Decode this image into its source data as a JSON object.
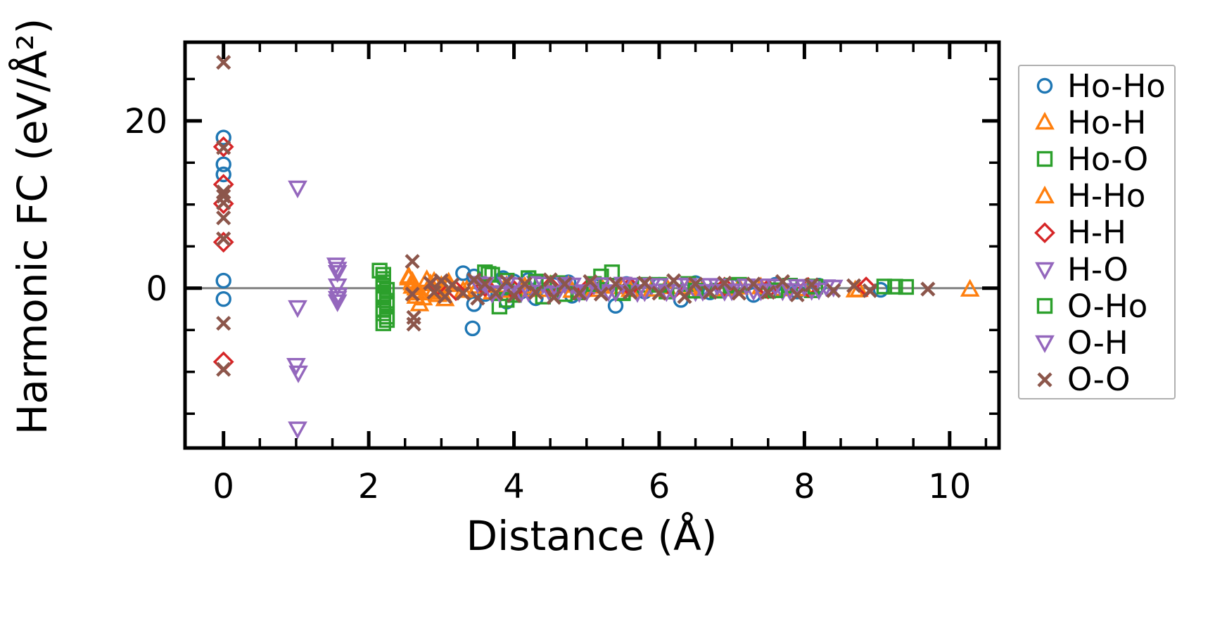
{
  "figure": {
    "background": "#ffffff",
    "axis_color": "#000000"
  },
  "chart_data": {
    "type": "scatter",
    "title": "",
    "xlabel": "Distance (Å)",
    "ylabel": "Harmonic FC (eV/Å²)",
    "xlim": [
      -0.53,
      10.68
    ],
    "ylim": [
      -19.1,
      29.4
    ],
    "x_major_ticks": [
      0,
      2,
      4,
      6,
      8,
      10
    ],
    "x_tick_labels": [
      "0",
      "2",
      "4",
      "6",
      "8",
      "10"
    ],
    "x_minor_ticks": [
      0.5,
      1,
      1.5,
      2.5,
      3,
      3.5,
      4.5,
      5,
      5.5,
      6.5,
      7,
      7.5,
      8.5,
      9,
      9.5,
      10.5
    ],
    "y_major_ticks": [
      0,
      20
    ],
    "y_tick_labels": [
      "0",
      "20"
    ],
    "y_minor_ticks": [
      -15,
      -10,
      -5,
      5,
      10,
      15,
      25
    ],
    "grid": false,
    "zero_line_y": 0,
    "zero_line_color": "#808080",
    "legend_position": "outside-right",
    "legend_border_color": "#b0b0b0",
    "series": [
      {
        "name": "Ho-Ho",
        "marker": "circle",
        "color": "#1f77b4",
        "points": [
          [
            0,
            18.0
          ],
          [
            0,
            14.8
          ],
          [
            0,
            13.6
          ],
          [
            0,
            0.9
          ],
          [
            0,
            -1.3
          ],
          [
            3.3,
            1.8
          ],
          [
            3.45,
            1.4
          ],
          [
            3.45,
            -1.9
          ],
          [
            3.55,
            0.5
          ],
          [
            3.6,
            -0.7
          ],
          [
            3.43,
            -4.8
          ],
          [
            3.85,
            1.2
          ],
          [
            3.9,
            -1.6
          ],
          [
            4.0,
            0.8
          ],
          [
            4.1,
            -0.4
          ],
          [
            4.2,
            1.0
          ],
          [
            4.3,
            -1.2
          ],
          [
            4.55,
            0.4
          ],
          [
            4.75,
            0.7
          ],
          [
            4.8,
            -0.9
          ],
          [
            5.1,
            0.3
          ],
          [
            5.4,
            -2.1
          ],
          [
            5.55,
            0.5
          ],
          [
            5.8,
            -0.4
          ],
          [
            6.0,
            0.4
          ],
          [
            6.3,
            -1.4
          ],
          [
            6.5,
            0.6
          ],
          [
            6.7,
            -0.5
          ],
          [
            7.0,
            0.3
          ],
          [
            7.3,
            -0.8
          ],
          [
            7.6,
            0.4
          ],
          [
            7.9,
            -0.4
          ],
          [
            8.2,
            0.3
          ],
          [
            9.05,
            -0.2
          ]
        ]
      },
      {
        "name": "Ho-H",
        "marker": "triangle-up",
        "color": "#ff7f0e",
        "points": [
          [
            2.55,
            1.4
          ],
          [
            2.6,
            0.8
          ],
          [
            2.6,
            0.2
          ],
          [
            2.65,
            -0.4
          ],
          [
            2.65,
            -1.0
          ],
          [
            2.7,
            -1.9
          ],
          [
            2.8,
            1.0
          ],
          [
            2.85,
            0.5
          ],
          [
            2.9,
            -0.2
          ],
          [
            2.95,
            -0.8
          ],
          [
            3.0,
            0.3
          ],
          [
            3.05,
            -1.3
          ],
          [
            3.1,
            0.7
          ],
          [
            3.3,
            -0.3
          ],
          [
            3.5,
            0.2
          ],
          [
            3.7,
            -0.5
          ],
          [
            3.9,
            0.3
          ],
          [
            4.2,
            -0.2
          ],
          [
            4.5,
            0.4
          ],
          [
            4.8,
            -0.3
          ],
          [
            5.2,
            0.2
          ],
          [
            5.6,
            -0.2
          ],
          [
            6.1,
            0.15
          ],
          [
            6.6,
            -0.15
          ],
          [
            7.1,
            0.1
          ],
          [
            7.7,
            -0.1
          ],
          [
            8.7,
            -0.25
          ],
          [
            10.28,
            -0.15
          ]
        ]
      },
      {
        "name": "Ho-O",
        "marker": "square",
        "color": "#2ca02c",
        "points": [
          [
            2.15,
            2.1
          ],
          [
            2.2,
            1.1
          ],
          [
            2.2,
            0.3
          ],
          [
            2.2,
            -0.7
          ],
          [
            2.25,
            -1.5
          ],
          [
            2.2,
            -2.5
          ],
          [
            2.25,
            -3.4
          ],
          [
            2.2,
            -4.2
          ],
          [
            3.6,
            1.9
          ],
          [
            3.7,
            1.6
          ],
          [
            3.8,
            -2.2
          ],
          [
            3.9,
            0.9
          ],
          [
            4.0,
            -0.8
          ],
          [
            4.2,
            1.2
          ],
          [
            4.4,
            -1.0
          ],
          [
            4.6,
            0.6
          ],
          [
            4.9,
            -0.5
          ],
          [
            5.2,
            1.4
          ],
          [
            5.35,
            1.9
          ],
          [
            5.5,
            -0.6
          ],
          [
            5.8,
            0.4
          ],
          [
            6.1,
            -0.4
          ],
          [
            6.4,
            0.5
          ],
          [
            6.8,
            -0.3
          ],
          [
            7.1,
            0.4
          ],
          [
            7.5,
            -0.3
          ],
          [
            7.8,
            0.3
          ],
          [
            8.1,
            -0.25
          ],
          [
            9.1,
            0.2
          ],
          [
            9.4,
            0.15
          ]
        ]
      },
      {
        "name": "H-Ho",
        "marker": "triangle-up",
        "color": "#ff7f0e",
        "points": [
          [
            2.55,
            1.2
          ],
          [
            2.6,
            0.6
          ],
          [
            2.65,
            0.0
          ],
          [
            2.7,
            -0.6
          ],
          [
            2.75,
            -1.2
          ],
          [
            2.9,
            0.8
          ],
          [
            3.0,
            -0.5
          ],
          [
            3.1,
            0.4
          ],
          [
            3.35,
            -0.2
          ],
          [
            3.6,
            0.3
          ],
          [
            3.85,
            -0.3
          ],
          [
            4.15,
            0.2
          ],
          [
            4.45,
            -0.2
          ],
          [
            4.75,
            0.3
          ],
          [
            5.1,
            -0.2
          ],
          [
            5.5,
            0.15
          ],
          [
            5.9,
            -0.15
          ],
          [
            6.4,
            0.1
          ],
          [
            6.9,
            -0.1
          ],
          [
            7.4,
            0.12
          ],
          [
            8.0,
            -0.12
          ],
          [
            8.75,
            -0.2
          ]
        ]
      },
      {
        "name": "H-H",
        "marker": "diamond",
        "color": "#d62728",
        "points": [
          [
            0,
            16.9
          ],
          [
            0,
            12.4
          ],
          [
            0,
            10.1
          ],
          [
            0,
            5.5
          ],
          [
            0,
            -8.8
          ],
          [
            2.95,
            0.3
          ],
          [
            3.2,
            -0.3
          ],
          [
            3.6,
            0.2
          ],
          [
            4.0,
            -0.25
          ],
          [
            4.5,
            0.2
          ],
          [
            5.0,
            -0.2
          ],
          [
            5.6,
            0.15
          ],
          [
            6.2,
            -0.15
          ],
          [
            6.9,
            0.12
          ],
          [
            7.5,
            -0.1
          ],
          [
            8.05,
            0.1
          ],
          [
            8.85,
            0.15
          ]
        ]
      },
      {
        "name": "H-O",
        "marker": "triangle-down",
        "color": "#9467bd",
        "points": [
          [
            1.02,
            12.0
          ],
          [
            1.02,
            -2.3
          ],
          [
            1.0,
            -9.2
          ],
          [
            1.03,
            -10.1
          ],
          [
            1.02,
            -16.8
          ],
          [
            1.55,
            2.8
          ],
          [
            1.57,
            1.9
          ],
          [
            1.57,
            0.3
          ],
          [
            1.58,
            -0.8
          ],
          [
            1.57,
            -1.6
          ],
          [
            3.5,
            0.6
          ],
          [
            3.7,
            -0.6
          ],
          [
            3.9,
            0.5
          ],
          [
            4.1,
            -0.5
          ],
          [
            4.3,
            0.6
          ],
          [
            4.5,
            -0.6
          ],
          [
            4.7,
            0.5
          ],
          [
            4.9,
            -0.5
          ],
          [
            5.1,
            0.4
          ],
          [
            5.3,
            -0.4
          ],
          [
            5.5,
            0.5
          ],
          [
            5.7,
            -0.5
          ],
          [
            5.9,
            0.4
          ],
          [
            6.1,
            -0.4
          ],
          [
            6.3,
            0.4
          ],
          [
            6.5,
            -0.4
          ],
          [
            6.7,
            0.35
          ],
          [
            6.9,
            -0.35
          ],
          [
            7.1,
            0.3
          ],
          [
            7.3,
            -0.3
          ],
          [
            7.5,
            0.3
          ],
          [
            7.7,
            -0.3
          ],
          [
            7.9,
            0.25
          ],
          [
            8.1,
            -0.25
          ],
          [
            8.3,
            0.2
          ]
        ]
      },
      {
        "name": "O-Ho",
        "marker": "square",
        "color": "#2ca02c",
        "points": [
          [
            2.2,
            1.6
          ],
          [
            2.2,
            0.7
          ],
          [
            2.25,
            -0.2
          ],
          [
            2.2,
            -1.1
          ],
          [
            2.25,
            -2.0
          ],
          [
            2.2,
            -3.0
          ],
          [
            2.25,
            -3.8
          ],
          [
            3.65,
            1.7
          ],
          [
            3.9,
            -1.4
          ],
          [
            4.3,
            0.8
          ],
          [
            4.7,
            -0.7
          ],
          [
            5.1,
            0.5
          ],
          [
            5.5,
            -0.5
          ],
          [
            6.0,
            0.4
          ],
          [
            6.5,
            -0.3
          ],
          [
            7.0,
            0.3
          ],
          [
            7.6,
            -0.25
          ],
          [
            8.15,
            0.2
          ],
          [
            9.25,
            0.18
          ]
        ]
      },
      {
        "name": "O-H",
        "marker": "triangle-down",
        "color": "#9467bd",
        "points": [
          [
            1.57,
            2.3
          ],
          [
            1.57,
            -1.2
          ],
          [
            3.6,
            0.5
          ],
          [
            3.8,
            -0.5
          ],
          [
            4.0,
            0.45
          ],
          [
            4.2,
            -0.45
          ],
          [
            4.4,
            0.5
          ],
          [
            4.6,
            -0.5
          ],
          [
            4.8,
            0.4
          ],
          [
            5.0,
            -0.4
          ],
          [
            5.2,
            0.45
          ],
          [
            5.4,
            -0.45
          ],
          [
            5.6,
            0.4
          ],
          [
            5.8,
            -0.4
          ],
          [
            6.0,
            0.35
          ],
          [
            6.2,
            -0.35
          ],
          [
            6.4,
            0.35
          ],
          [
            6.6,
            -0.35
          ],
          [
            6.8,
            0.3
          ],
          [
            7.0,
            -0.3
          ],
          [
            7.2,
            0.3
          ],
          [
            7.4,
            -0.3
          ],
          [
            7.6,
            0.25
          ],
          [
            7.8,
            -0.25
          ],
          [
            8.0,
            0.2
          ],
          [
            8.2,
            -0.2
          ],
          [
            8.4,
            0.15
          ]
        ]
      },
      {
        "name": "O-O",
        "marker": "x",
        "color": "#8c564b",
        "points": [
          [
            0,
            27.0
          ],
          [
            0,
            16.8
          ],
          [
            0,
            11.5
          ],
          [
            0,
            11.0
          ],
          [
            0,
            10.2
          ],
          [
            0,
            8.4
          ],
          [
            0,
            5.9
          ],
          [
            0,
            -4.2
          ],
          [
            0,
            -9.7
          ],
          [
            2.6,
            3.2
          ],
          [
            2.6,
            -0.7
          ],
          [
            2.62,
            -3.5
          ],
          [
            2.62,
            -4.3
          ],
          [
            2.85,
            0.6
          ],
          [
            2.9,
            -0.5
          ],
          [
            3.0,
            0.9
          ],
          [
            3.05,
            -1.0
          ],
          [
            3.15,
            0.4
          ],
          [
            3.3,
            -0.6
          ],
          [
            3.45,
            1.0
          ],
          [
            3.5,
            -1.2
          ],
          [
            3.6,
            0.5
          ],
          [
            3.75,
            -0.6
          ],
          [
            3.9,
            0.8
          ],
          [
            4.0,
            -0.9
          ],
          [
            4.15,
            0.5
          ],
          [
            4.3,
            -0.5
          ],
          [
            4.5,
            1.0
          ],
          [
            4.55,
            -1.1
          ],
          [
            4.7,
            0.5
          ],
          [
            4.9,
            -0.6
          ],
          [
            5.05,
            0.8
          ],
          [
            5.2,
            -0.7
          ],
          [
            5.4,
            0.5
          ],
          [
            5.6,
            -0.5
          ],
          [
            5.8,
            0.6
          ],
          [
            6.0,
            -0.6
          ],
          [
            6.2,
            0.9
          ],
          [
            6.35,
            -1.0
          ],
          [
            6.5,
            0.5
          ],
          [
            6.7,
            -0.5
          ],
          [
            6.9,
            0.6
          ],
          [
            7.1,
            -0.6
          ],
          [
            7.3,
            0.5
          ],
          [
            7.5,
            -0.5
          ],
          [
            7.7,
            0.8
          ],
          [
            7.9,
            -0.8
          ],
          [
            8.1,
            0.4
          ],
          [
            8.4,
            -0.3
          ],
          [
            8.68,
            0.3
          ],
          [
            8.9,
            -0.3
          ],
          [
            9.7,
            -0.1
          ]
        ]
      }
    ]
  }
}
